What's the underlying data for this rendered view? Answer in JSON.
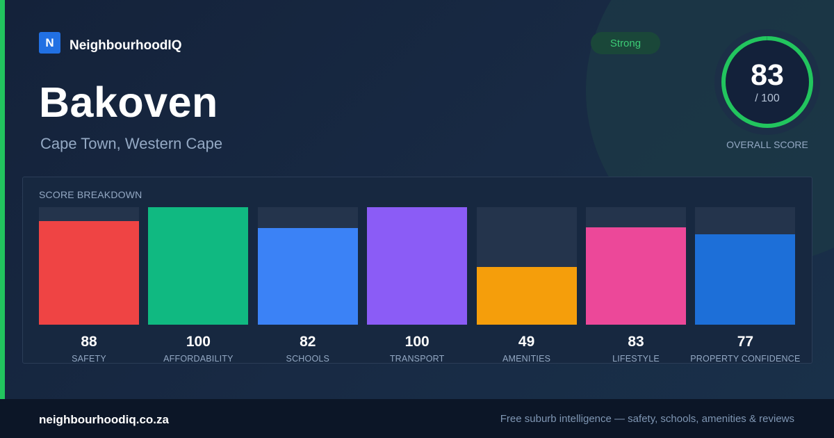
{
  "brand": {
    "logo_letter": "N",
    "name": "NeighbourhoodIQ"
  },
  "suburb": {
    "name": "Bakoven",
    "location": "Cape Town, Western Cape"
  },
  "rating_badge": "Strong",
  "overall": {
    "score": "83",
    "max_text": "/ 100",
    "label": "OVERALL SCORE",
    "score_value": 83,
    "ring_color": "#22c55e"
  },
  "breakdown": {
    "title": "SCORE BREAKDOWN",
    "max": 100,
    "items": [
      {
        "label": "SAFETY",
        "value": 88,
        "color": "#ef4444"
      },
      {
        "label": "AFFORDABILITY",
        "value": 100,
        "color": "#10b981"
      },
      {
        "label": "SCHOOLS",
        "value": 82,
        "color": "#3b82f6"
      },
      {
        "label": "TRANSPORT",
        "value": 100,
        "color": "#8b5cf6"
      },
      {
        "label": "AMENITIES",
        "value": 49,
        "color": "#f59e0b"
      },
      {
        "label": "LIFESTYLE",
        "value": 83,
        "color": "#ec4899"
      },
      {
        "label": "PROPERTY CONFIDENCE",
        "value": 77,
        "color": "#1d6fd8"
      }
    ]
  },
  "footer": {
    "url": "neighbourhoodiq.co.za",
    "tagline": "Free suburb intelligence — safety, schools, amenities & reviews"
  },
  "colors": {
    "accent": "#22c55e",
    "brand": "#2170e3",
    "background": "#14223a"
  }
}
